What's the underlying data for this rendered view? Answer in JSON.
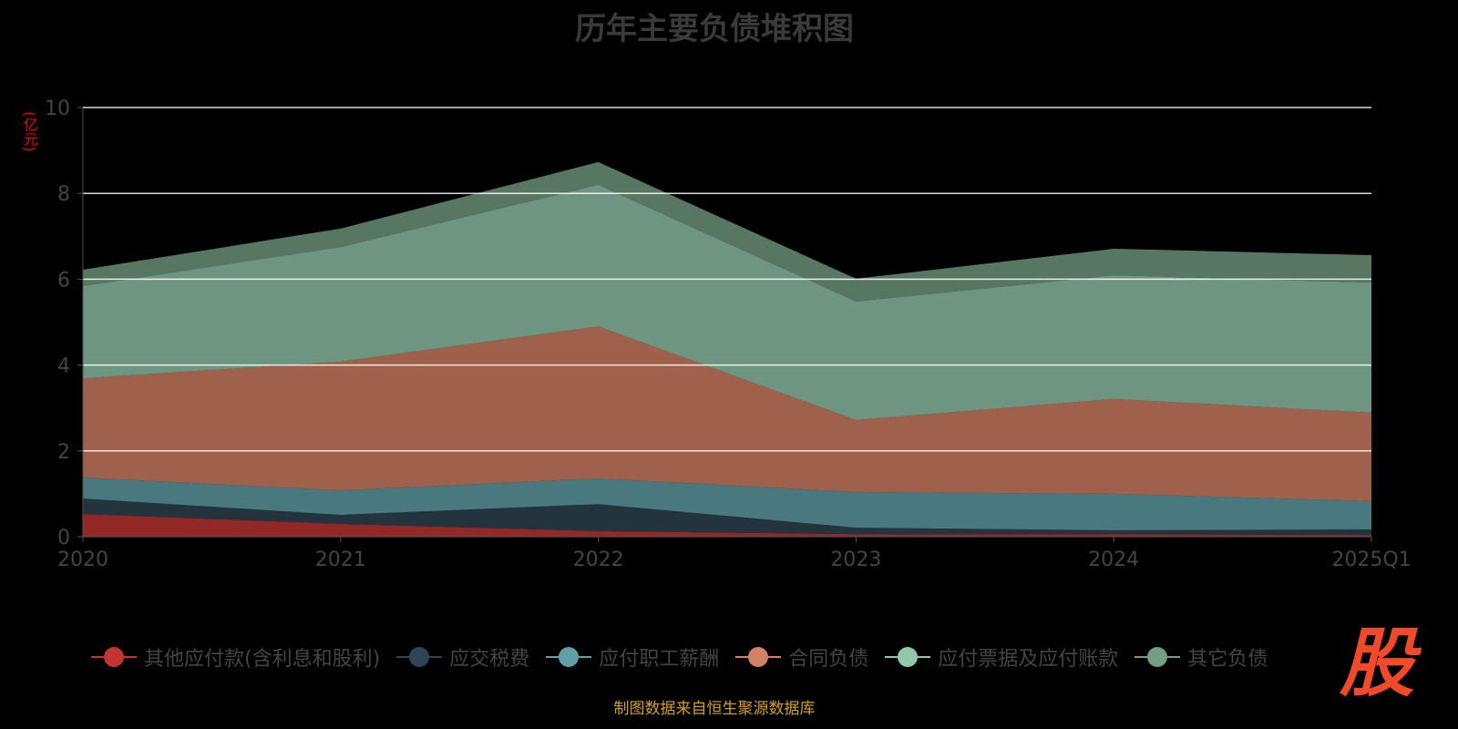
{
  "title": "历年主要负债堆积图",
  "unit_label": "(亿元)",
  "source": "制图数据来自恒生聚源数据库",
  "logo_text": "股",
  "chart_data": {
    "type": "area",
    "stacked": true,
    "title": "历年主要负债堆积图",
    "ylabel": "(亿元)",
    "ylim": [
      0,
      10
    ],
    "yticks": [
      0,
      2,
      4,
      6,
      8,
      10
    ],
    "grid": true,
    "legend_position": "bottom",
    "categories": [
      "2020",
      "2021",
      "2022",
      "2023",
      "2024",
      "2025Q1"
    ],
    "series": [
      {
        "name": "其他应付款(含利息和股利)",
        "color": "#c23531",
        "values": [
          0.53,
          0.3,
          0.13,
          0.06,
          0.06,
          0.04
        ]
      },
      {
        "name": "应交税费",
        "color": "#2f4554",
        "values": [
          0.36,
          0.21,
          0.63,
          0.15,
          0.09,
          0.13
        ]
      },
      {
        "name": "应付职工薪酬",
        "color": "#61a0a8",
        "values": [
          0.49,
          0.57,
          0.6,
          0.83,
          0.85,
          0.66
        ]
      },
      {
        "name": "合同负债",
        "color": "#d48265",
        "values": [
          2.31,
          3.0,
          3.54,
          1.68,
          2.21,
          2.06
        ]
      },
      {
        "name": "应付票据及应付账款",
        "color": "#91c7ae",
        "values": [
          2.15,
          2.67,
          3.3,
          2.76,
          2.88,
          3.03
        ]
      },
      {
        "name": "其它负债",
        "color": "#749f83",
        "values": [
          0.38,
          0.43,
          0.53,
          0.53,
          0.62,
          0.64
        ]
      }
    ]
  }
}
